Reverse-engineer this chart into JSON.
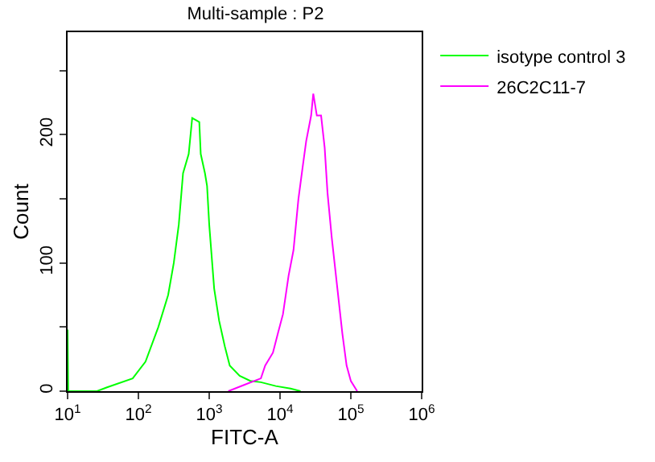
{
  "chart_data": {
    "type": "line",
    "title": "Multi-sample : P2",
    "xlabel": "FITC-A",
    "ylabel": "Count",
    "log": "x",
    "series": [
      {
        "name": "isotype control 3",
        "color": "#00ff00",
        "x": [
          10,
          10.2,
          26,
          36,
          83,
          126,
          191,
          263,
          316,
          372,
          427,
          513,
          575,
          724,
          759,
          871,
          933,
          1000,
          1175,
          1380,
          1660,
          1950,
          2690,
          3800,
          5370,
          8710,
          14100,
          19500
        ],
        "values": [
          48,
          0,
          0,
          3,
          10,
          23,
          50,
          75,
          100,
          130,
          170,
          185,
          213,
          210,
          185,
          170,
          160,
          130,
          80,
          55,
          35,
          20,
          12,
          8,
          7,
          4,
          2,
          0
        ]
      },
      {
        "name": "26C2C11-7",
        "color": "#ff00ff",
        "x": [
          1860,
          3160,
          5370,
          6170,
          7940,
          9330,
          11000,
          13200,
          15500,
          18200,
          20900,
          23400,
          27500,
          29500,
          33100,
          38000,
          42700,
          46800,
          53700,
          64600,
          75900,
          87100,
          100000,
          123000
        ],
        "values": [
          0,
          5,
          10,
          20,
          30,
          45,
          60,
          90,
          110,
          150,
          175,
          195,
          215,
          232,
          215,
          215,
          190,
          155,
          120,
          80,
          45,
          20,
          8,
          0
        ]
      }
    ],
    "xlim": [
      10,
      1000000
    ],
    "ylim": [
      0,
      280
    ],
    "xticks": [
      {
        "value": 10,
        "label": "10$^{1}$"
      },
      {
        "value": 100,
        "label": "10$^{2}$"
      },
      {
        "value": 1000,
        "label": "10$^{3}$"
      },
      {
        "value": 10000,
        "label": "10$^{4}$"
      },
      {
        "value": 100000,
        "label": "10$^{5}$"
      },
      {
        "value": 1000000,
        "label": "10$^{6}$"
      }
    ],
    "yticks": [
      0,
      {
        "value": 50,
        "label": null
      },
      100,
      {
        "value": 150,
        "label": null
      },
      200,
      {
        "value": 250,
        "label": null
      }
    ],
    "legend": "top right",
    "marker": "none",
    "line_style": "solid"
  }
}
